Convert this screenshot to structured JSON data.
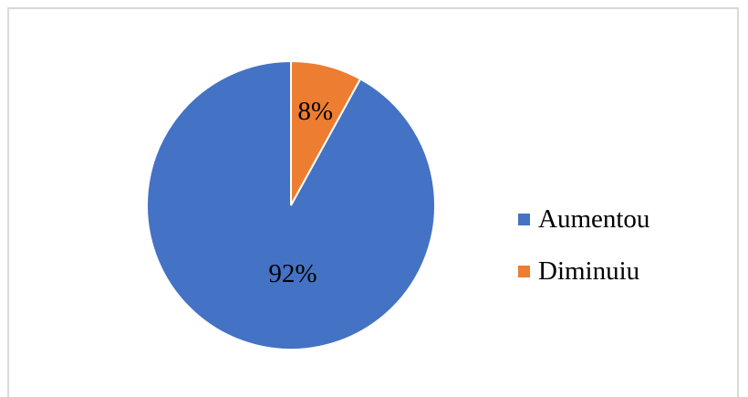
{
  "chart_data": {
    "type": "pie",
    "categories": [
      "Aumentou",
      "Diminuiu"
    ],
    "values": [
      92,
      8
    ],
    "labels": [
      "92%",
      "8%"
    ],
    "colors": [
      "#4472c4",
      "#ed7d31"
    ],
    "legend_position": "right"
  },
  "legend": {
    "items": [
      {
        "label": "Aumentou",
        "color": "#4472c4"
      },
      {
        "label": "Diminuiu",
        "color": "#ed7d31"
      }
    ]
  }
}
